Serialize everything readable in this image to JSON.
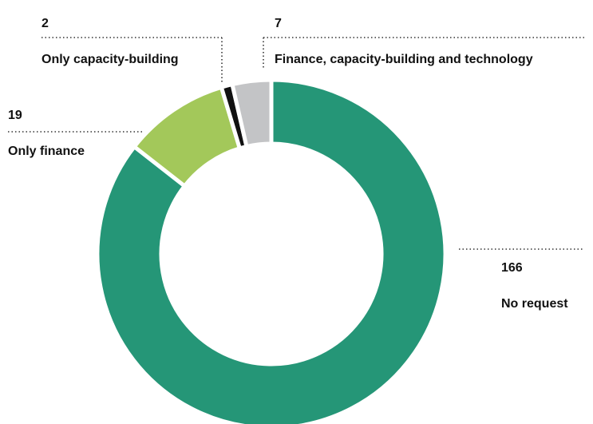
{
  "chart_data": {
    "type": "donut",
    "categories": [
      "No request",
      "Only finance",
      "Only capacity-building",
      "Finance, capacity-building and technology"
    ],
    "values": [
      166,
      19,
      2,
      7
    ],
    "colors": [
      "#259677",
      "#a3c85a",
      "#111111",
      "#c3c4c6"
    ]
  }
}
